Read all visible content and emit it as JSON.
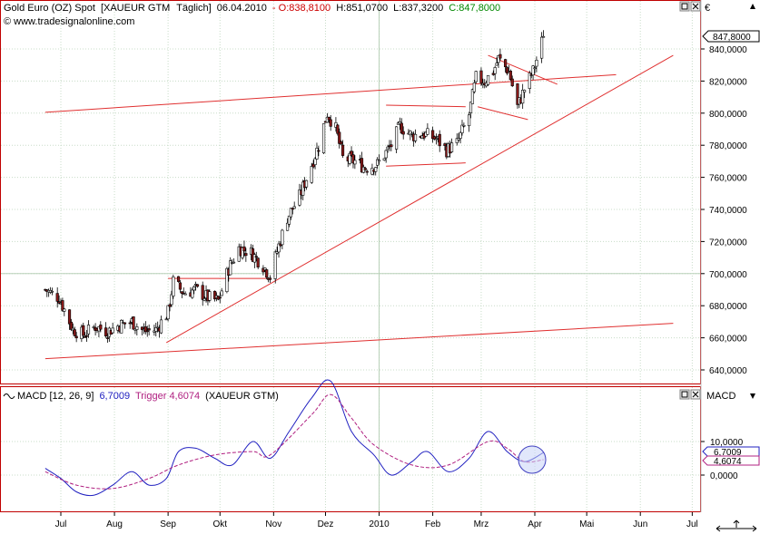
{
  "price_panel": {
    "name": "Gold Euro (OZ) Spot",
    "symbol": "[XAUEUR GTM",
    "interval": "Täglich]",
    "date": "06.04.2010",
    "open_label": "- O:838,8100",
    "high_label": "H:851,0700",
    "low_label": "L:837,3200",
    "close_label": "C:847,8000",
    "watermark": "© www.tradesignalonline.com",
    "currency": "€",
    "last_price_label": "847,8000"
  },
  "macd_panel": {
    "name": "MACD [12, 26, 9]",
    "value_label": "6,7009",
    "trigger_label": "Trigger 4,6074",
    "source": "(XAUEUR GTM)",
    "axis_title": "MACD",
    "badge_macd": "6,7009",
    "badge_trigger": "4,6074"
  },
  "colors": {
    "up_candle": "#ffffff",
    "down_candle": "#8b1a1a",
    "trendline": "#e03030",
    "macd_line": "#2020c0",
    "trigger_line": "#b02080",
    "grid": "#c8dcc8",
    "open_text": "#cc0000",
    "close_text": "#008800"
  },
  "chart_data": [
    {
      "type": "candlestick",
      "title": "Gold Euro (OZ) Spot [XAUEUR GTM  Täglich]",
      "x_tick_labels": [
        "Jul",
        "Aug",
        "Sep",
        "Okt",
        "Nov",
        "Dez",
        "2010",
        "Feb",
        "Mrz",
        "Apr",
        "Mai",
        "Jun",
        "Jul"
      ],
      "y_tick_labels": [
        "640,0000",
        "660,0000",
        "680,0000",
        "700,0000",
        "720,0000",
        "740,0000",
        "760,0000",
        "780,0000",
        "800,0000",
        "820,0000",
        "840,0000"
      ],
      "ylim": [
        632,
        858
      ],
      "grid": true,
      "last_close": 847.8,
      "trendlines_note": "long-term channel, rising support, consolidation channel and triangle drawn as red lines",
      "close_series": [
        {
          "date": "2009-06-22",
          "close": 690
        },
        {
          "date": "2009-06-30",
          "close": 685
        },
        {
          "date": "2009-07-08",
          "close": 665
        },
        {
          "date": "2009-07-14",
          "close": 662
        },
        {
          "date": "2009-07-21",
          "close": 667
        },
        {
          "date": "2009-07-28",
          "close": 664
        },
        {
          "date": "2009-08-04",
          "close": 668
        },
        {
          "date": "2009-08-11",
          "close": 670
        },
        {
          "date": "2009-08-18",
          "close": 664
        },
        {
          "date": "2009-08-25",
          "close": 665
        },
        {
          "date": "2009-09-01",
          "close": 676
        },
        {
          "date": "2009-09-04",
          "close": 695
        },
        {
          "date": "2009-09-10",
          "close": 688
        },
        {
          "date": "2009-09-17",
          "close": 690
        },
        {
          "date": "2009-09-24",
          "close": 685
        },
        {
          "date": "2009-09-30",
          "close": 683
        },
        {
          "date": "2009-10-06",
          "close": 703
        },
        {
          "date": "2009-10-12",
          "close": 716
        },
        {
          "date": "2009-10-19",
          "close": 713
        },
        {
          "date": "2009-10-26",
          "close": 705
        },
        {
          "date": "2009-10-30",
          "close": 698
        },
        {
          "date": "2009-11-03",
          "close": 714
        },
        {
          "date": "2009-11-09",
          "close": 735
        },
        {
          "date": "2009-11-16",
          "close": 748
        },
        {
          "date": "2009-11-23",
          "close": 768
        },
        {
          "date": "2009-11-27",
          "close": 780
        },
        {
          "date": "2009-12-02",
          "close": 800
        },
        {
          "date": "2009-12-07",
          "close": 790
        },
        {
          "date": "2009-12-11",
          "close": 772
        },
        {
          "date": "2009-12-18",
          "close": 770
        },
        {
          "date": "2009-12-24",
          "close": 766
        },
        {
          "date": "2009-12-31",
          "close": 768
        },
        {
          "date": "2010-01-08",
          "close": 780
        },
        {
          "date": "2010-01-13",
          "close": 792
        },
        {
          "date": "2010-01-20",
          "close": 786
        },
        {
          "date": "2010-01-27",
          "close": 787
        },
        {
          "date": "2010-02-03",
          "close": 784
        },
        {
          "date": "2010-02-09",
          "close": 777
        },
        {
          "date": "2010-02-15",
          "close": 781
        },
        {
          "date": "2010-02-22",
          "close": 799
        },
        {
          "date": "2010-02-26",
          "close": 822
        },
        {
          "date": "2010-03-03",
          "close": 820
        },
        {
          "date": "2010-03-08",
          "close": 826
        },
        {
          "date": "2010-03-11",
          "close": 834
        },
        {
          "date": "2010-03-17",
          "close": 826
        },
        {
          "date": "2010-03-22",
          "close": 804
        },
        {
          "date": "2010-03-26",
          "close": 815
        },
        {
          "date": "2010-03-31",
          "close": 826
        },
        {
          "date": "2010-04-06",
          "close": 847.8
        }
      ]
    },
    {
      "type": "line",
      "title": "MACD [12, 26, 9] 6,7009 Trigger 4,6074 (XAUEUR GTM)",
      "y_tick_labels": [
        "10,0000",
        "0,0000"
      ],
      "ylim": [
        -14,
        38
      ],
      "series": [
        {
          "name": "MACD",
          "values": [
            {
              "date": "2009-06-22",
              "v": 2
            },
            {
              "date": "2009-07-01",
              "v": -1
            },
            {
              "date": "2009-07-10",
              "v": -5
            },
            {
              "date": "2009-07-20",
              "v": -6
            },
            {
              "date": "2009-07-31",
              "v": -3
            },
            {
              "date": "2009-08-11",
              "v": 1
            },
            {
              "date": "2009-08-21",
              "v": -3
            },
            {
              "date": "2009-08-31",
              "v": -1
            },
            {
              "date": "2009-09-07",
              "v": 7
            },
            {
              "date": "2009-09-17",
              "v": 8
            },
            {
              "date": "2009-09-28",
              "v": 5
            },
            {
              "date": "2009-10-08",
              "v": 3
            },
            {
              "date": "2009-10-20",
              "v": 10
            },
            {
              "date": "2009-10-30",
              "v": 5
            },
            {
              "date": "2009-11-10",
              "v": 13
            },
            {
              "date": "2009-11-23",
              "v": 23
            },
            {
              "date": "2009-12-04",
              "v": 28
            },
            {
              "date": "2009-12-16",
              "v": 13
            },
            {
              "date": "2009-12-29",
              "v": 6
            },
            {
              "date": "2010-01-08",
              "v": 0
            },
            {
              "date": "2010-01-20",
              "v": 4
            },
            {
              "date": "2010-01-29",
              "v": 7
            },
            {
              "date": "2010-02-10",
              "v": 1
            },
            {
              "date": "2010-02-22",
              "v": 5
            },
            {
              "date": "2010-03-05",
              "v": 13
            },
            {
              "date": "2010-03-16",
              "v": 7
            },
            {
              "date": "2010-03-26",
              "v": 4
            },
            {
              "date": "2010-04-06",
              "v": 6.7009
            }
          ]
        },
        {
          "name": "Trigger",
          "values": [
            {
              "date": "2009-06-22",
              "v": 1
            },
            {
              "date": "2009-07-10",
              "v": -3
            },
            {
              "date": "2009-07-31",
              "v": -4
            },
            {
              "date": "2009-08-21",
              "v": -1
            },
            {
              "date": "2009-09-07",
              "v": 3
            },
            {
              "date": "2009-09-28",
              "v": 6
            },
            {
              "date": "2009-10-20",
              "v": 7
            },
            {
              "date": "2009-10-30",
              "v": 6
            },
            {
              "date": "2009-11-23",
              "v": 18
            },
            {
              "date": "2009-12-04",
              "v": 24
            },
            {
              "date": "2009-12-16",
              "v": 17
            },
            {
              "date": "2009-12-29",
              "v": 9
            },
            {
              "date": "2010-01-20",
              "v": 3
            },
            {
              "date": "2010-02-10",
              "v": 3
            },
            {
              "date": "2010-03-05",
              "v": 10
            },
            {
              "date": "2010-03-16",
              "v": 8
            },
            {
              "date": "2010-03-26",
              "v": 4
            },
            {
              "date": "2010-04-06",
              "v": 4.6074
            }
          ]
        }
      ]
    }
  ]
}
